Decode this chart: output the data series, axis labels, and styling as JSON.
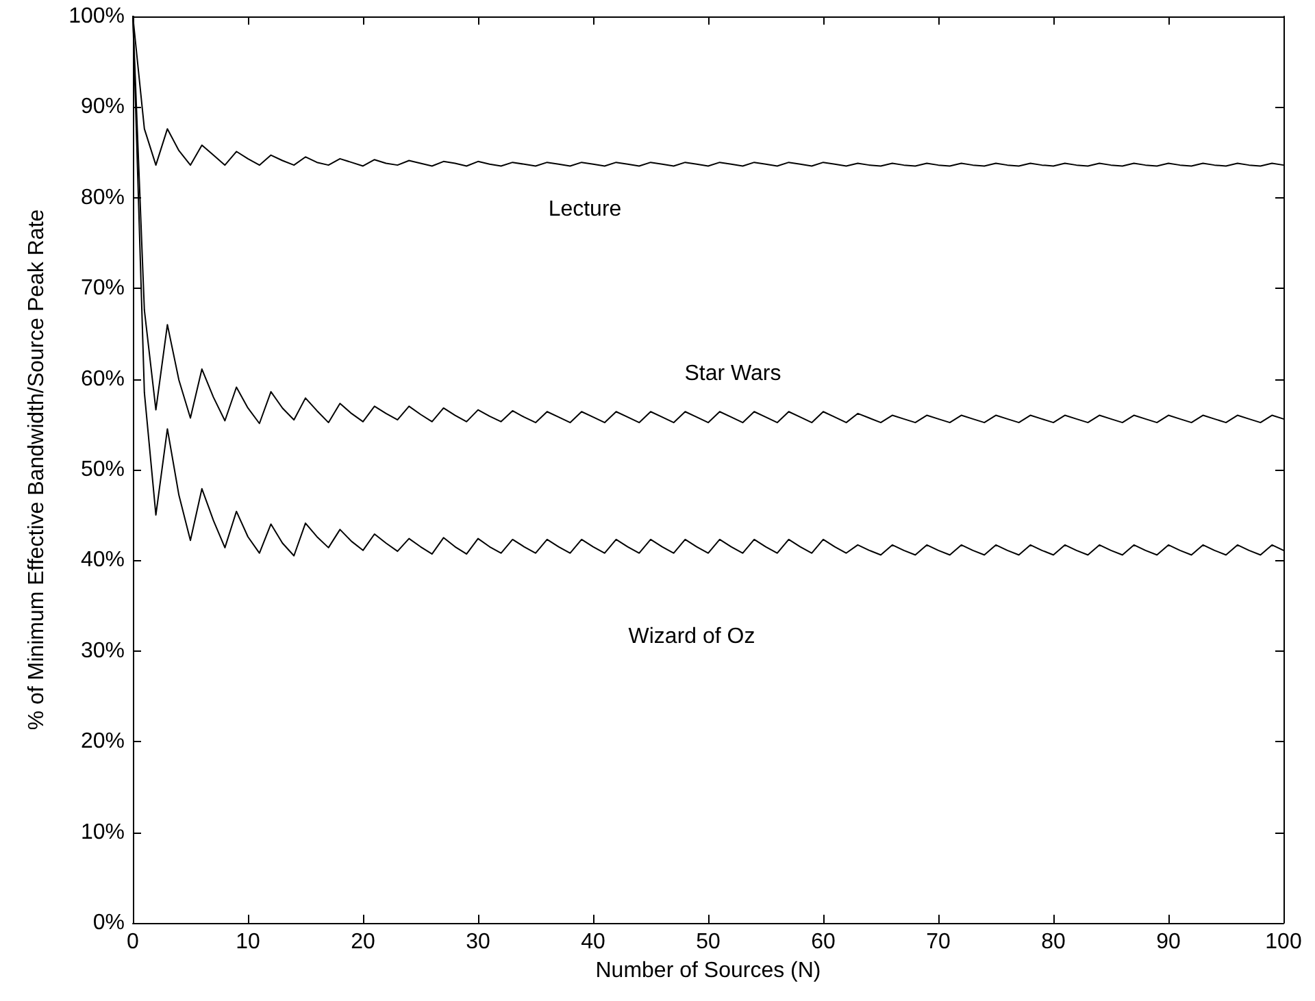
{
  "chart_data": {
    "type": "line",
    "xlabel": "Number of Sources (N)",
    "ylabel": "% of Minimum Effective Bandwidth/Source Peak Rate",
    "x": [
      0,
      1,
      2,
      3,
      4,
      5,
      6,
      7,
      8,
      9,
      10,
      11,
      12,
      13,
      14,
      15,
      16,
      17,
      18,
      19,
      20,
      21,
      22,
      23,
      24,
      25,
      26,
      27,
      28,
      29,
      30,
      31,
      32,
      33,
      34,
      35,
      36,
      37,
      38,
      39,
      40,
      41,
      42,
      43,
      44,
      45,
      46,
      47,
      48,
      49,
      50,
      51,
      52,
      53,
      54,
      55,
      56,
      57,
      58,
      59,
      60,
      61,
      62,
      63,
      64,
      65,
      66,
      67,
      68,
      69,
      70,
      71,
      72,
      73,
      74,
      75,
      76,
      77,
      78,
      79,
      80,
      81,
      82,
      83,
      84,
      85,
      86,
      87,
      88,
      89,
      90,
      91,
      92,
      93,
      94,
      95,
      96,
      97,
      98,
      99,
      100
    ],
    "series": [
      {
        "color": "#000000",
        "values": [
          100,
          87.6,
          83.6,
          87.6,
          85.2,
          83.6,
          85.8,
          84.7,
          83.6,
          85.1,
          84.3,
          83.6,
          84.7,
          84.1,
          83.6,
          84.5,
          83.9,
          83.6,
          84.3,
          83.9,
          83.5,
          84.2,
          83.8,
          83.6,
          84.1,
          83.8,
          83.5,
          84.0,
          83.8,
          83.5,
          84.0,
          83.7,
          83.5,
          83.9,
          83.7,
          83.5,
          83.9,
          83.7,
          83.5,
          83.9,
          83.7,
          83.5,
          83.9,
          83.7,
          83.5,
          83.9,
          83.7,
          83.5,
          83.9,
          83.7,
          83.5,
          83.9,
          83.7,
          83.5,
          83.9,
          83.7,
          83.5,
          83.9,
          83.7,
          83.5,
          83.9,
          83.7,
          83.5,
          83.8,
          83.6,
          83.5,
          83.8,
          83.6,
          83.5,
          83.8,
          83.6,
          83.5,
          83.8,
          83.6,
          83.5,
          83.8,
          83.6,
          83.5,
          83.8,
          83.6,
          83.5,
          83.8,
          83.6,
          83.5,
          83.8,
          83.6,
          83.5,
          83.8,
          83.6,
          83.5,
          83.8,
          83.6,
          83.5,
          83.8,
          83.6,
          83.5,
          83.8,
          83.6,
          83.5,
          83.8,
          83.6
        ]
      },
      {
        "color": "#000000",
        "values": [
          100,
          67.6,
          56.6,
          66.0,
          59.9,
          55.7,
          61.1,
          58.0,
          55.4,
          59.1,
          56.8,
          55.1,
          58.6,
          56.8,
          55.5,
          57.9,
          56.5,
          55.2,
          57.3,
          56.2,
          55.3,
          57.0,
          56.2,
          55.5,
          57.0,
          56.1,
          55.3,
          56.8,
          56.0,
          55.3,
          56.6,
          55.9,
          55.3,
          56.5,
          55.8,
          55.2,
          56.4,
          55.8,
          55.2,
          56.4,
          55.8,
          55.2,
          56.4,
          55.8,
          55.2,
          56.4,
          55.8,
          55.2,
          56.4,
          55.8,
          55.2,
          56.4,
          55.8,
          55.2,
          56.4,
          55.8,
          55.2,
          56.4,
          55.8,
          55.2,
          56.4,
          55.8,
          55.2,
          56.2,
          55.7,
          55.2,
          56.0,
          55.6,
          55.2,
          56.0,
          55.6,
          55.2,
          56.0,
          55.6,
          55.2,
          56.0,
          55.6,
          55.2,
          56.0,
          55.6,
          55.2,
          56.0,
          55.6,
          55.2,
          56.0,
          55.6,
          55.2,
          56.0,
          55.6,
          55.2,
          56.0,
          55.6,
          55.2,
          56.0,
          55.6,
          55.2,
          56.0,
          55.6,
          55.2,
          56.0,
          55.6
        ]
      },
      {
        "color": "#000000",
        "values": [
          100,
          58.5,
          45.0,
          54.5,
          47.2,
          42.2,
          47.9,
          44.4,
          41.4,
          45.4,
          42.6,
          40.8,
          44.0,
          41.9,
          40.5,
          44.1,
          42.6,
          41.4,
          43.4,
          42.1,
          41.1,
          42.9,
          41.9,
          41.0,
          42.4,
          41.5,
          40.7,
          42.5,
          41.5,
          40.7,
          42.4,
          41.5,
          40.8,
          42.3,
          41.5,
          40.8,
          42.3,
          41.5,
          40.8,
          42.3,
          41.5,
          40.8,
          42.3,
          41.5,
          40.8,
          42.3,
          41.5,
          40.8,
          42.3,
          41.5,
          40.8,
          42.3,
          41.5,
          40.8,
          42.3,
          41.5,
          40.8,
          42.3,
          41.5,
          40.8,
          42.3,
          41.5,
          40.8,
          41.7,
          41.1,
          40.6,
          41.7,
          41.1,
          40.6,
          41.7,
          41.1,
          40.6,
          41.7,
          41.1,
          40.6,
          41.7,
          41.1,
          40.6,
          41.7,
          41.1,
          40.6,
          41.7,
          41.1,
          40.6,
          41.7,
          41.1,
          40.6,
          41.7,
          41.1,
          40.6,
          41.7,
          41.1,
          40.6,
          41.7,
          41.1,
          40.6,
          41.7,
          41.1,
          40.6,
          41.7,
          41.1
        ]
      }
    ],
    "annotations": [
      "Lecture",
      "Star Wars",
      "Wizard of Oz"
    ],
    "xlim": [
      0,
      100
    ],
    "xticks": [
      0,
      10,
      20,
      30,
      40,
      50,
      60,
      70,
      80,
      90,
      100
    ],
    "ylim": [
      0,
      100
    ],
    "yticks": [
      {
        "value": 0,
        "label": "0%"
      },
      {
        "value": 10,
        "label": "10%"
      },
      {
        "value": 20,
        "label": "20%"
      },
      {
        "value": 30,
        "label": "30%"
      },
      {
        "value": 40,
        "label": "40%"
      },
      {
        "value": 50,
        "label": "50%"
      },
      {
        "value": 60,
        "label": "60%"
      },
      {
        "value": 70,
        "label": "70%"
      },
      {
        "value": 80,
        "label": "80%"
      },
      {
        "value": 90,
        "label": "90%"
      },
      {
        "value": 100,
        "label": "100%"
      }
    ],
    "grid": false,
    "marker": "none",
    "line_style": "solid"
  }
}
